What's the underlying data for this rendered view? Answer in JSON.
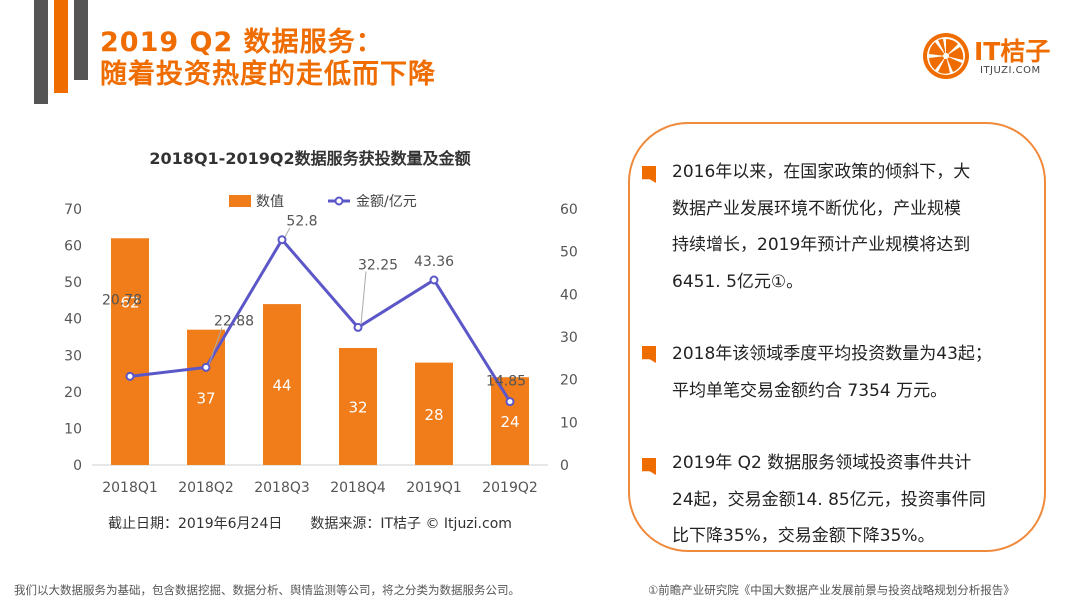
{
  "header": {
    "title_line1": "2019 Q2 数据服务：",
    "title_line2": "随着投资热度的走低而下降"
  },
  "logo": {
    "name": "IT桔子",
    "url_text": "ITJUZI.COM"
  },
  "colors": {
    "accent": "#ef6c00",
    "bar": "#f07c1a",
    "line": "#5b57c8",
    "deco_dark": "#555555"
  },
  "chart_data": {
    "type": "bar",
    "title": "2018Q1-2019Q2数据服务获投数量及金额",
    "categories": [
      "2018Q1",
      "2018Q2",
      "2018Q3",
      "2018Q4",
      "2019Q1",
      "2019Q2"
    ],
    "series": [
      {
        "name": "数值",
        "type": "bar",
        "axis": "left",
        "values": [
          62,
          37,
          44,
          32,
          28,
          24
        ]
      },
      {
        "name": "金额/亿元",
        "type": "line",
        "axis": "right",
        "values": [
          20.78,
          22.88,
          52.8,
          32.25,
          43.36,
          14.85
        ]
      }
    ],
    "y_left": {
      "ylim": [
        0,
        70
      ],
      "ticks": [
        0,
        10,
        20,
        30,
        40,
        50,
        60,
        70
      ]
    },
    "y_right": {
      "ylim": [
        0,
        60
      ],
      "ticks": [
        0,
        10,
        20,
        30,
        40,
        50,
        60
      ]
    },
    "grid": false,
    "legend": "top",
    "line_labels": [
      "20.78",
      "22.88",
      "52.8",
      "32.25",
      "43.36",
      "14.85"
    ],
    "bar_labels": [
      "62",
      "37",
      "44",
      "32",
      "28",
      "24"
    ]
  },
  "chart_source": "截止日期：2019年6月24日　　数据来源：IT桔子 © Itjuzi.com",
  "points": [
    {
      "lines": [
        "2016年以来，在国家政策的倾斜下，大",
        "数据产业发展环境不断优化，产业规模",
        "持续增长，2019年预计产业规模将达到",
        "6451. 5亿元①。"
      ]
    },
    {
      "lines": [
        "2018年该领域季度平均投资数量为43起；",
        "平均单笔交易金额约合 7354 万元。"
      ]
    },
    {
      "lines": [
        "2019年 Q2 数据服务领域投资事件共计",
        "24起，交易金额14. 85亿元，投资事件同",
        "比下降35%，交易金额下降35%。"
      ]
    }
  ],
  "footer": {
    "left": "我们以大数据服务为基础，包含数据挖掘、数据分析、舆情监测等公司，将之分类为数据服务公司。",
    "right": "①前瞻产业研究院《中国大数据产业发展前景与投资战略规划分析报告》"
  }
}
